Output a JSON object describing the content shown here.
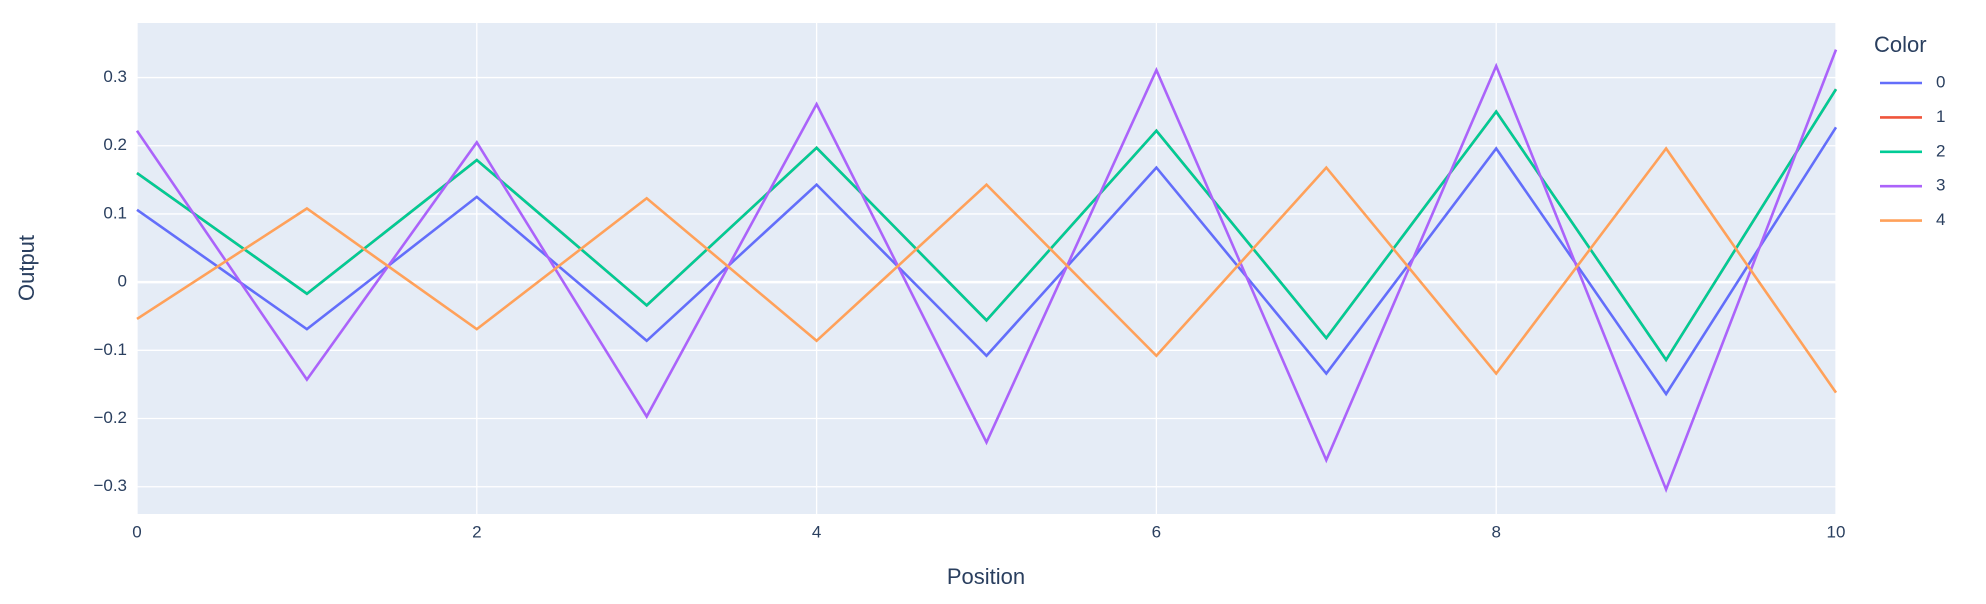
{
  "chart_data": {
    "type": "line",
    "x_label": "Position",
    "y_label": "Output",
    "legend_title": "Color",
    "x": [
      0,
      1,
      2,
      3,
      4,
      5,
      6,
      7,
      8,
      9,
      10
    ],
    "series": [
      {
        "name": "0",
        "color": "#636efa",
        "values": [
          0.106,
          -0.069,
          0.125,
          -0.086,
          0.143,
          -0.108,
          0.168,
          -0.134,
          0.196,
          -0.164,
          0.227
        ]
      },
      {
        "name": "1",
        "color": "#EF553B",
        "values": [
          0.16,
          -0.017,
          0.179,
          -0.034,
          0.197,
          -0.056,
          0.222,
          -0.082,
          0.25,
          -0.114,
          0.283
        ]
      },
      {
        "name": "2",
        "color": "#00cc96",
        "values": [
          0.16,
          -0.017,
          0.179,
          -0.034,
          0.197,
          -0.056,
          0.222,
          -0.082,
          0.25,
          -0.114,
          0.283
        ]
      },
      {
        "name": "3",
        "color": "#ab63fa",
        "values": [
          0.222,
          -0.143,
          0.205,
          -0.197,
          0.261,
          -0.235,
          0.311,
          -0.261,
          0.317,
          -0.304,
          0.341
        ]
      },
      {
        "name": "4",
        "color": "#FFA15A",
        "values": [
          -0.054,
          0.108,
          -0.069,
          0.123,
          -0.086,
          0.143,
          -0.108,
          0.168,
          -0.134,
          0.196,
          -0.162
        ]
      }
    ],
    "xlim": [
      0,
      10
    ],
    "xticks": [
      0,
      2,
      4,
      6,
      8,
      10
    ],
    "ylim": [
      -0.34,
      0.38
    ],
    "yticks": [
      {
        "value": -0.3,
        "label": "−0.3"
      },
      {
        "value": -0.2,
        "label": "−0.2"
      },
      {
        "value": -0.1,
        "label": "−0.1"
      },
      0,
      0.1,
      0.2,
      0.3
    ],
    "grid": true,
    "legend": "right"
  }
}
